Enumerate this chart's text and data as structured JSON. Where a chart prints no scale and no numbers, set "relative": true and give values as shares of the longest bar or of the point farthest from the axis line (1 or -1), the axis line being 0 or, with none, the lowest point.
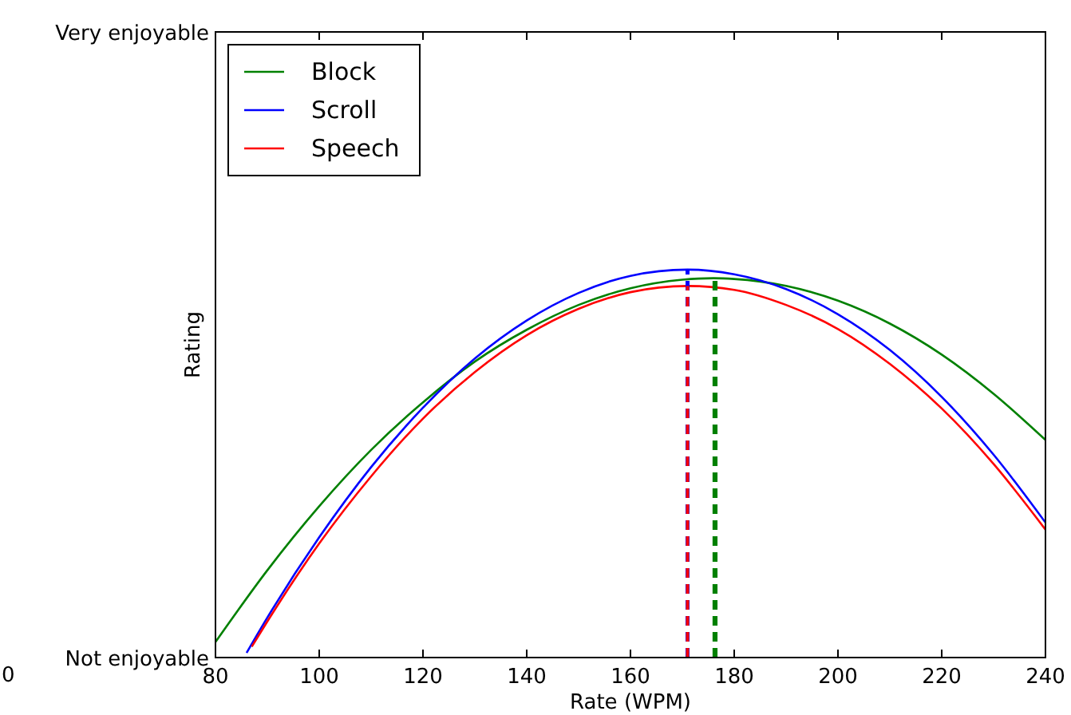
{
  "chart_data": {
    "type": "line",
    "relative": true,
    "xlabel": "Rate (WPM)",
    "ylabel": "Rating",
    "xlim": [
      80,
      240
    ],
    "xticks": [
      80,
      100,
      120,
      140,
      160,
      180,
      200,
      220,
      240
    ],
    "grid": false,
    "legend": "top left",
    "line_style": "solid",
    "marker": "none",
    "annotations": [
      "Very enjoyable",
      "Not enjoyable",
      "0"
    ],
    "series": [
      {
        "name": "Block",
        "color": "#008000",
        "x": [
          80,
          90,
          100,
          110,
          120,
          130,
          140,
          150,
          160,
          170,
          176,
          180,
          190,
          200,
          210,
          220,
          230,
          240
        ],
        "values": [
          0.04,
          0.225,
          0.39,
          0.535,
          0.658,
          0.763,
          0.845,
          0.909,
          0.952,
          0.974,
          0.978,
          0.976,
          0.958,
          0.92,
          0.861,
          0.781,
          0.68,
          0.561
        ]
      },
      {
        "name": "Scroll",
        "color": "#0000ff",
        "x": [
          86,
          90,
          100,
          110,
          120,
          130,
          140,
          150,
          160,
          171,
          180,
          190,
          200,
          210,
          220,
          230,
          240
        ],
        "values": [
          0.012,
          0.103,
          0.31,
          0.491,
          0.644,
          0.771,
          0.869,
          0.94,
          0.984,
          1,
          0.988,
          0.95,
          0.885,
          0.793,
          0.672,
          0.523,
          0.348
        ]
      },
      {
        "name": "Speech",
        "color": "#ff0000",
        "x": [
          87,
          90,
          100,
          110,
          120,
          130,
          140,
          150,
          160,
          171,
          180,
          190,
          200,
          210,
          220,
          230,
          240
        ],
        "values": [
          0.028,
          0.093,
          0.294,
          0.467,
          0.616,
          0.736,
          0.831,
          0.899,
          0.942,
          0.958,
          0.948,
          0.909,
          0.847,
          0.757,
          0.642,
          0.499,
          0.33
        ]
      },
      {
        "color": "#008000",
        "line_style": "dashed",
        "x": [
          176.3,
          176.3
        ],
        "values": [
          0,
          0.978
        ]
      },
      {
        "color": "#0000ff",
        "line_style": "dashed",
        "x": [
          171,
          171
        ],
        "values": [
          0,
          1
        ]
      },
      {
        "color": "#ff0000",
        "line_style": "dashed",
        "x": [
          171,
          171
        ],
        "values": [
          0,
          0.958
        ]
      }
    ]
  }
}
